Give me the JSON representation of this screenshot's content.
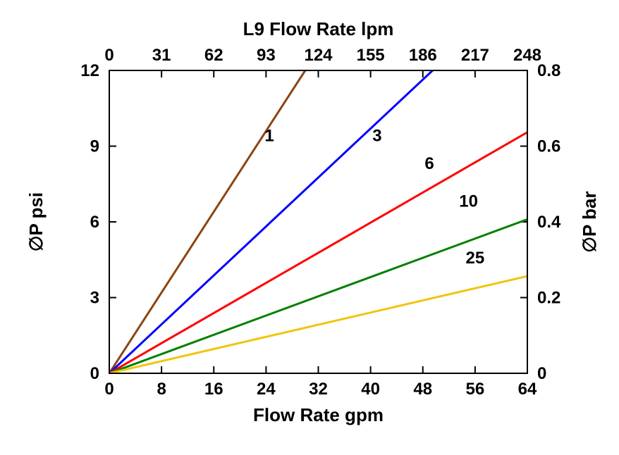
{
  "chart": {
    "type": "line",
    "title": "L9 Flow Rate lpm",
    "title_fontsize": 26,
    "background_color": "#ffffff",
    "plot_border_color": "#000000",
    "plot_border_width": 2,
    "label_fontsize": 26,
    "tick_fontsize": 24,
    "series_label_fontsize": 24,
    "font_family": "Arial",
    "font_weight": "bold",
    "x_bottom": {
      "label": "Flow Rate gpm",
      "min": 0,
      "max": 64,
      "ticks": [
        0,
        8,
        16,
        24,
        32,
        40,
        48,
        56,
        64
      ]
    },
    "x_top": {
      "label": "L9 Flow Rate lpm",
      "min": 0,
      "max": 248,
      "ticks": [
        0,
        31,
        62,
        93,
        124,
        155,
        186,
        217,
        248
      ]
    },
    "y_left": {
      "label": "∅P psi",
      "min": 0,
      "max": 12,
      "ticks": [
        0,
        3,
        6,
        9,
        12
      ]
    },
    "y_right": {
      "label": "∅P bar",
      "min": 0,
      "max": 0.8,
      "ticks": [
        0,
        0.2,
        0.4,
        0.6,
        0.8
      ]
    },
    "series": [
      {
        "name": "1",
        "color": "#8b4513",
        "line_width": 3,
        "label_x": 24.5,
        "label_y": 9.2,
        "points": [
          [
            0,
            0
          ],
          [
            30,
            12
          ]
        ]
      },
      {
        "name": "3",
        "color": "#0000ff",
        "line_width": 3,
        "label_x": 41,
        "label_y": 9.2,
        "points": [
          [
            0,
            0
          ],
          [
            49.5,
            12
          ]
        ]
      },
      {
        "name": "6",
        "color": "#ff0000",
        "line_width": 3,
        "label_x": 49,
        "label_y": 8.1,
        "points": [
          [
            0,
            0
          ],
          [
            64,
            9.55
          ]
        ]
      },
      {
        "name": "10",
        "color": "#008000",
        "line_width": 3,
        "label_x": 55,
        "label_y": 6.6,
        "points": [
          [
            0,
            0
          ],
          [
            64,
            6.1
          ]
        ]
      },
      {
        "name": "25",
        "color": "#f1c40f",
        "line_width": 3,
        "label_x": 56,
        "label_y": 4.35,
        "points": [
          [
            0,
            0
          ],
          [
            64,
            3.85
          ]
        ]
      }
    ],
    "tick_length": 10
  }
}
